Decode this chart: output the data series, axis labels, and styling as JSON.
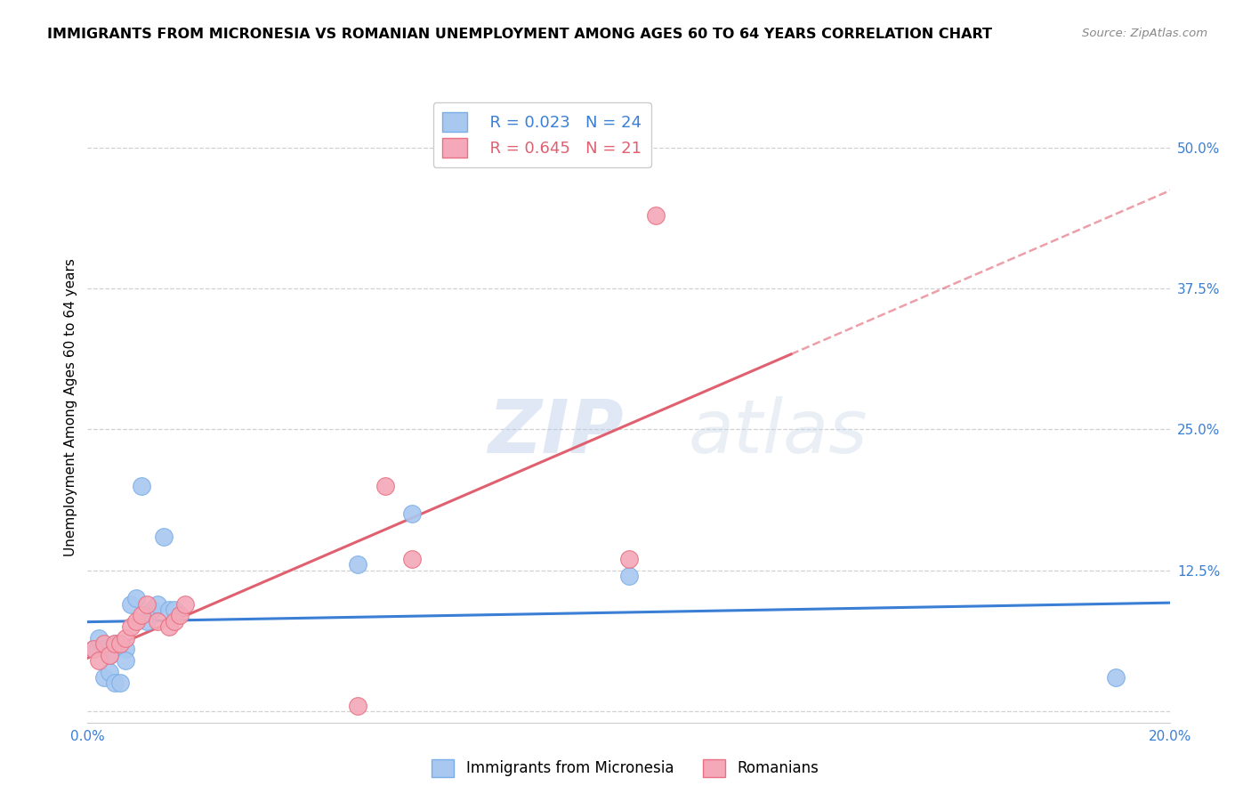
{
  "title": "IMMIGRANTS FROM MICRONESIA VS ROMANIAN UNEMPLOYMENT AMONG AGES 60 TO 64 YEARS CORRELATION CHART",
  "source": "Source: ZipAtlas.com",
  "ylabel": "Unemployment Among Ages 60 to 64 years",
  "xlim": [
    0.0,
    0.2
  ],
  "ylim": [
    -0.01,
    0.55
  ],
  "xtick_vals": [
    0.0,
    0.05,
    0.1,
    0.15,
    0.2
  ],
  "xtick_labels": [
    "0.0%",
    "",
    "",
    "",
    "20.0%"
  ],
  "ytick_vals": [
    0.0,
    0.125,
    0.25,
    0.375,
    0.5
  ],
  "ytick_labels": [
    "",
    "12.5%",
    "25.0%",
    "37.5%",
    "50.0%"
  ],
  "background_color": "#ffffff",
  "grid_color": "#cccccc",
  "blue_scatter_x": [
    0.001,
    0.002,
    0.003,
    0.003,
    0.004,
    0.004,
    0.005,
    0.005,
    0.006,
    0.007,
    0.007,
    0.008,
    0.009,
    0.01,
    0.011,
    0.012,
    0.013,
    0.014,
    0.015,
    0.016,
    0.05,
    0.06,
    0.1,
    0.19
  ],
  "blue_scatter_y": [
    0.055,
    0.065,
    0.055,
    0.03,
    0.05,
    0.035,
    0.06,
    0.025,
    0.025,
    0.055,
    0.045,
    0.095,
    0.1,
    0.2,
    0.08,
    0.09,
    0.095,
    0.155,
    0.09,
    0.09,
    0.13,
    0.175,
    0.12,
    0.03
  ],
  "pink_scatter_x": [
    0.001,
    0.002,
    0.003,
    0.004,
    0.005,
    0.006,
    0.007,
    0.008,
    0.009,
    0.01,
    0.011,
    0.013,
    0.015,
    0.016,
    0.017,
    0.018,
    0.05,
    0.055,
    0.06,
    0.1,
    0.105
  ],
  "pink_scatter_y": [
    0.055,
    0.045,
    0.06,
    0.05,
    0.06,
    0.06,
    0.065,
    0.075,
    0.08,
    0.085,
    0.095,
    0.08,
    0.075,
    0.08,
    0.085,
    0.095,
    0.005,
    0.2,
    0.135,
    0.135,
    0.44
  ],
  "blue_R": 0.023,
  "blue_N": 24,
  "pink_R": 0.645,
  "pink_N": 21,
  "blue_line_color": "#3a7fd5",
  "pink_line_color": "#e06070",
  "blue_dot_color": "#a8c8f0",
  "pink_dot_color": "#f4a8b8",
  "blue_dot_edge": "#7aaee8",
  "pink_dot_edge": "#e87080",
  "legend_label_blue": "Immigrants from Micronesia",
  "legend_label_pink": "Romanians",
  "title_fontsize": 11.5,
  "axis_label_fontsize": 11,
  "tick_fontsize": 11,
  "legend_fontsize": 13
}
